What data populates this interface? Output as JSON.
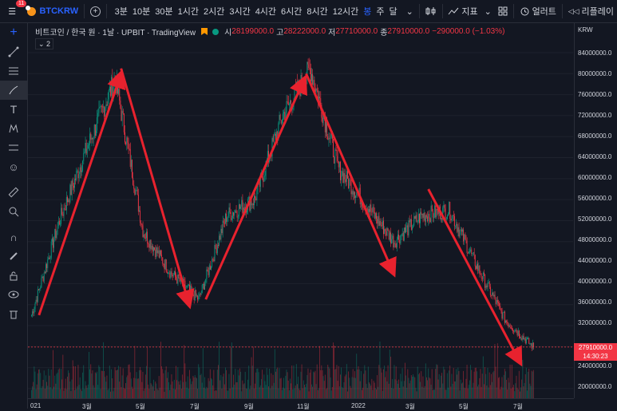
{
  "toolbar": {
    "notification_count": "11",
    "symbol": "BTCKRW",
    "timeframes": [
      "3분",
      "10분",
      "30분",
      "1시간",
      "2시간",
      "3시간",
      "4시간",
      "6시간",
      "8시간",
      "12시간",
      "봉",
      "주",
      "달"
    ],
    "active_timeframe": "봉",
    "indicators_label": "지표",
    "alert_label": "얼러트",
    "replay_label": "리플레이"
  },
  "legend": {
    "title": "비트코인 / 한국 원 · 1날 · UPBIT · TradingView",
    "open_key": "시",
    "open_val": "28199000.0",
    "high_key": "고",
    "high_val": "28222000.0",
    "low_key": "저",
    "low_val": "27710000.0",
    "close_key": "종",
    "close_val": "27910000.0",
    "change": "−290000.0 (−1.03%)",
    "collapse": "2"
  },
  "price_axis": {
    "currency": "KRW",
    "labels": [
      "84000000.0",
      "80000000.0",
      "76000000.0",
      "72000000.0",
      "68000000.0",
      "64000000.0",
      "60000000.0",
      "56000000.0",
      "52000000.0",
      "48000000.0",
      "44000000.0",
      "40000000.0",
      "36000000.0",
      "32000000.0",
      "24000000.0",
      "20000000.0"
    ],
    "last_price": "27910000.0",
    "countdown": "14:30:23"
  },
  "time_axis": {
    "labels": [
      "021",
      "3월",
      "5월",
      "7월",
      "9월",
      "11월",
      "2022",
      "3월",
      "5월",
      "7월"
    ]
  },
  "colors": {
    "up": "#089981",
    "down": "#f23645",
    "arrow": "#e8222e",
    "accent": "#2962ff"
  },
  "chart_data": {
    "type": "line",
    "title": "비트코인 / 한국 원 · 1날 · UPBIT",
    "xlabel": "",
    "ylabel": "",
    "ylim": [
      18000000,
      86000000
    ],
    "x": [
      "2021-01",
      "2021-02",
      "2021-03",
      "2021-04",
      "2021-05",
      "2021-06",
      "2021-07",
      "2021-08",
      "2021-09",
      "2021-10",
      "2021-11",
      "2021-12",
      "2022-01",
      "2022-02",
      "2022-03",
      "2022-04",
      "2022-05",
      "2022-06",
      "2022-07"
    ],
    "series": [
      {
        "values": [
          34000000,
          52000000,
          66000000,
          79000000,
          50000000,
          42000000,
          37000000,
          53000000,
          56000000,
          72000000,
          81000000,
          62000000,
          55000000,
          48000000,
          53000000,
          54000000,
          43000000,
          33000000,
          27910000
        ]
      }
    ],
    "trend_arrows": [
      {
        "from": [
          "2021-01-10",
          34000000
        ],
        "to": [
          "2021-04-14",
          80000000
        ]
      },
      {
        "from": [
          "2021-04-14",
          81000000
        ],
        "to": [
          "2021-07-01",
          36000000
        ]
      },
      {
        "from": [
          "2021-07-20",
          37000000
        ],
        "to": [
          "2021-11-10",
          79000000
        ]
      },
      {
        "from": [
          "2021-11-12",
          80000000
        ],
        "to": [
          "2022-02-20",
          42000000
        ]
      },
      {
        "from": [
          "2022-04-01",
          58000000
        ],
        "to": [
          "2022-07-15",
          25000000
        ]
      }
    ]
  }
}
